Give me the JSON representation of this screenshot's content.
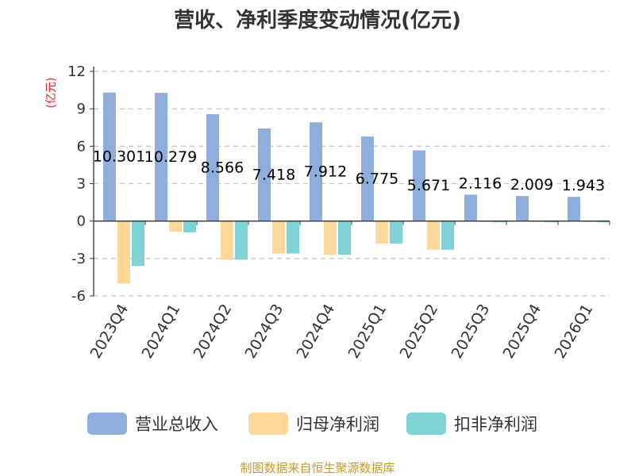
{
  "chart_data": {
    "type": "bar",
    "title": "营收、净利季度变动情况(亿元)",
    "ylabel": "(亿元)",
    "xlabel": "",
    "ylim": [
      -6,
      12
    ],
    "yticks": [
      12,
      9,
      6,
      3,
      0,
      -3,
      -6
    ],
    "grid": true,
    "legend_position": "bottom",
    "categories": [
      "2023Q4",
      "2024Q1",
      "2024Q2",
      "2024Q3",
      "2024Q4",
      "2025Q1",
      "2025Q2",
      "2025Q3",
      "2025Q4",
      "2026Q1"
    ],
    "series": [
      {
        "name": "营业总收入",
        "color": "#8eaedb",
        "values": [
          10.301,
          10.279,
          8.566,
          7.418,
          7.912,
          6.775,
          5.671,
          2.116,
          2.009,
          1.943
        ]
      },
      {
        "name": "归母净利润",
        "color": "#fdd69a",
        "values": [
          -5.0,
          -0.85,
          -3.1,
          -2.6,
          -2.7,
          -1.8,
          -2.3,
          -0.05,
          -0.03,
          -0.05
        ]
      },
      {
        "name": "扣非净利润",
        "color": "#7fd3d4",
        "values": [
          -3.6,
          -0.9,
          -3.1,
          -2.6,
          -2.7,
          -1.8,
          -2.3,
          -0.1,
          -0.1,
          -0.1
        ]
      }
    ],
    "data_labels": [
      "10.301",
      "10.279",
      "8.566",
      "7.418",
      "7.912",
      "6.775",
      "5.671",
      "2.116",
      "2.009",
      "1.943"
    ],
    "source": "制图数据来自恒生聚源数据库"
  }
}
